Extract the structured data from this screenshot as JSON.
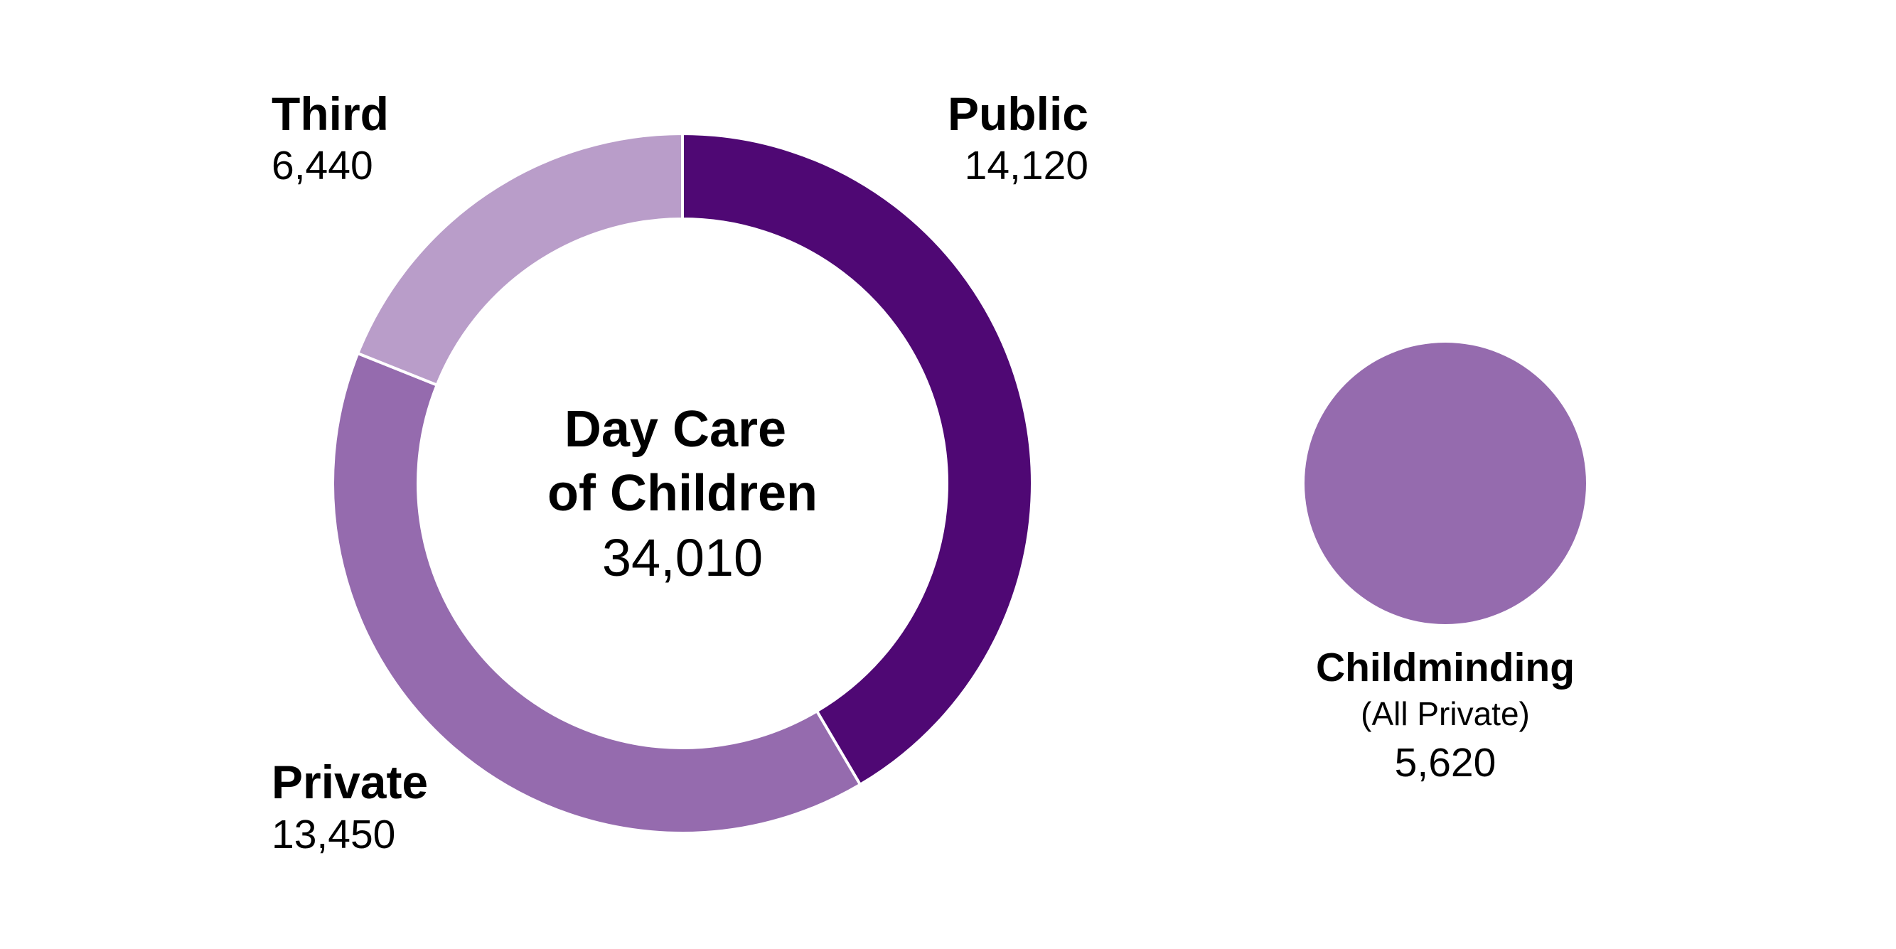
{
  "chart_data": [
    {
      "type": "pie",
      "title": "Day Care of Children",
      "total_label": "34,010",
      "total": 34010,
      "categories": [
        "Public",
        "Private",
        "Third"
      ],
      "values": [
        14120,
        13450,
        6440
      ],
      "value_labels": [
        "14,120",
        "13,450",
        "6,440"
      ],
      "colors": [
        "#4f0874",
        "#956bae",
        "#b99dc9"
      ],
      "style": "donut"
    },
    {
      "type": "pie",
      "title": "Childminding",
      "note": "(All Private)",
      "categories": [
        "Childminding"
      ],
      "values": [
        5620
      ],
      "value_labels": [
        "5,620"
      ],
      "colors": [
        "#956bae"
      ]
    }
  ]
}
